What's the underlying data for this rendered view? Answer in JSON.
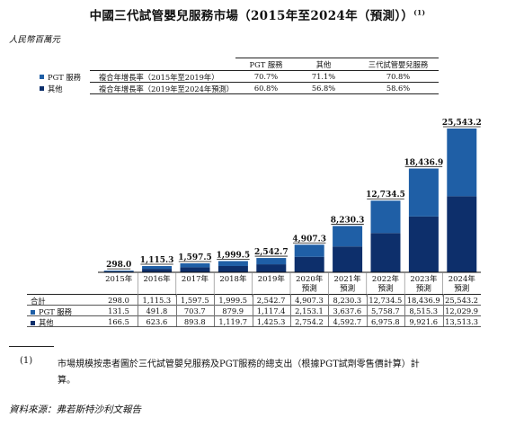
{
  "title": "中國三代試管嬰兒服務市場（2015年至2024年（預測））",
  "title_note": "(1)",
  "unit": "人民幣百萬元",
  "legend": [
    {
      "label": "PGT 服務",
      "color": "#1f5fa6"
    },
    {
      "label": "其他",
      "color": "#0d2f6b"
    }
  ],
  "cagr": {
    "headers": [
      "PGT 服務",
      "其他",
      "三代試管嬰兒服務"
    ],
    "rows": [
      {
        "label": "複合年增長率（2015年至2019年）",
        "values": [
          "70.7%",
          "71.1%",
          "70.8%"
        ]
      },
      {
        "label": "複合年增長率（2019年至2024年預測）",
        "values": [
          "60.8%",
          "56.8%",
          "58.6%"
        ]
      }
    ]
  },
  "chart_data": {
    "type": "bar",
    "stacked": true,
    "categories": [
      "2015年",
      "2016年",
      "2017年",
      "2018年",
      "2019年",
      "2020年 預測",
      "2021年 預測",
      "2022年 預測",
      "2023年 預測",
      "2024年 預測"
    ],
    "category_lines": [
      [
        "2015年"
      ],
      [
        "2016年"
      ],
      [
        "2017年"
      ],
      [
        "2018年"
      ],
      [
        "2019年"
      ],
      [
        "2020年",
        "預測"
      ],
      [
        "2021年",
        "預測"
      ],
      [
        "2022年",
        "預測"
      ],
      [
        "2023年",
        "預測"
      ],
      [
        "2024年",
        "預測"
      ]
    ],
    "series": [
      {
        "name": "PGT 服務",
        "values": [
          131.5,
          491.8,
          703.7,
          879.9,
          1117.4,
          2153.1,
          3637.6,
          5758.7,
          8515.3,
          12029.9
        ]
      },
      {
        "name": "其他",
        "values": [
          166.5,
          623.6,
          893.8,
          1119.7,
          1425.3,
          2754.2,
          4592.7,
          6975.8,
          9921.6,
          13513.3
        ]
      }
    ],
    "totals": [
      298.0,
      1115.3,
      1597.5,
      1999.5,
      2542.7,
      4907.3,
      8230.3,
      12734.5,
      18436.9,
      25543.2
    ],
    "total_labels": [
      "298.0",
      "1,115.3",
      "1,597.5",
      "1,999.5",
      "2,542.7",
      "4,907.3",
      "8,230.3",
      "12,734.5",
      "18,436.9",
      "25,543.2"
    ],
    "ylim": [
      0,
      25543.2
    ],
    "table": {
      "row_labels": [
        "合計",
        "PGT 服務",
        "其他"
      ],
      "rows": [
        [
          "298.0",
          "1,115.3",
          "1,597.5",
          "1,999.5",
          "2,542.7",
          "4,907.3",
          "8,230.3",
          "12,734.5",
          "18,436.9",
          "25,543.2"
        ],
        [
          "131.5",
          "491.8",
          "703.7",
          "879.9",
          "1,117.4",
          "2,153.1",
          "3,637.6",
          "5,758.7",
          "8,515.3",
          "12,029.9"
        ],
        [
          "166.5",
          "623.6",
          "893.8",
          "1,119.7",
          "1,425.3",
          "2,754.2",
          "4,592.7",
          "6,975.8",
          "9,921.6",
          "13,513.3"
        ]
      ]
    }
  },
  "footnote": {
    "mark": "(1)",
    "line1": "市場規模按患者圖於三代試管嬰兒服務及PGT服務的總支出（根據PGT試劑零售價計算）計",
    "line2": "算。"
  },
  "source": "資料來源：弗若斯特沙利文報告"
}
